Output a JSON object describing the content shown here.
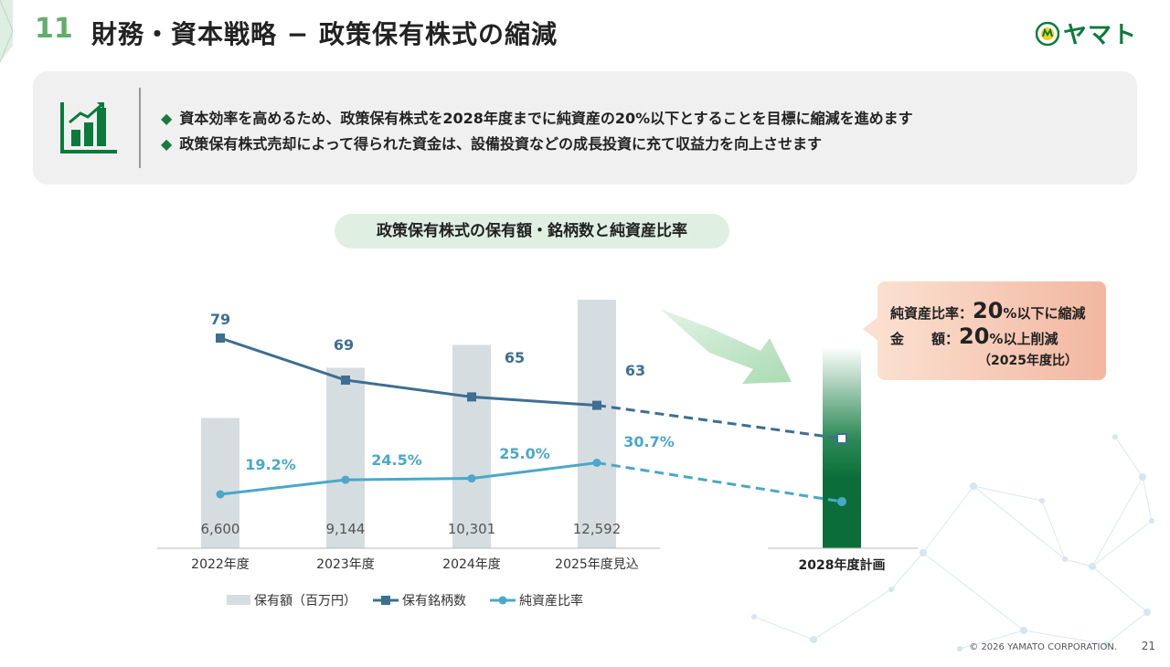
{
  "header": {
    "section_number": "11",
    "title": "財務・資本戦略 − 政策保有株式の縮減",
    "logo_text": "ヤマト"
  },
  "summary": {
    "bullet_mark": "◆",
    "bullets": [
      "資本効率を高めるため、政策保有株式を2028年度までに純資産の20%以下とすることを目標に縮減を進めます",
      "政策保有株式売却によって得られた資金は、設備投資などの成長投資に充て収益力を向上させます"
    ]
  },
  "callout": {
    "row1_label": "純資産比率：",
    "row1_value": "20",
    "row1_suffix": "%以下に縮減",
    "row2_label": "金　　額：",
    "row2_value": "20",
    "row2_suffix": "%以上削減",
    "note": "（2025年度比）"
  },
  "chart_data": {
    "type": "bar",
    "title": "政策保有株式の保有額・銘柄数と純資産比率",
    "categories": [
      "2022年度",
      "2023年度",
      "2024年度",
      "2025年度見込"
    ],
    "plan_category": "2028年度計画",
    "series": [
      {
        "name": "保有額（百万円）",
        "type": "bar",
        "values": [
          6600,
          9144,
          10301,
          12592
        ],
        "labels": [
          "6,600",
          "9,144",
          "10,301",
          "12,592"
        ],
        "color": "#d5dde1"
      },
      {
        "name": "保有銘柄数",
        "type": "line",
        "values": [
          79,
          69,
          65,
          63
        ],
        "labels": [
          "79",
          "69",
          "65",
          "63"
        ],
        "color": "#3d6f92"
      },
      {
        "name": "純資産比率",
        "type": "line",
        "values": [
          19.2,
          24.5,
          25.0,
          30.7
        ],
        "labels": [
          "19.2%",
          "24.5%",
          "25.0%",
          "30.7%"
        ],
        "color": "#4aa8c9"
      }
    ],
    "legend": [
      "保有額（百万円）",
      "保有銘柄数",
      "純資産比率"
    ],
    "legend_position": "bottom"
  },
  "footer": {
    "copyright": "© 2026 YAMATO CORPORATION.",
    "page_number": "21"
  },
  "colors": {
    "accent_green": "#0b7a3c",
    "title_green": "#5fae6b"
  }
}
